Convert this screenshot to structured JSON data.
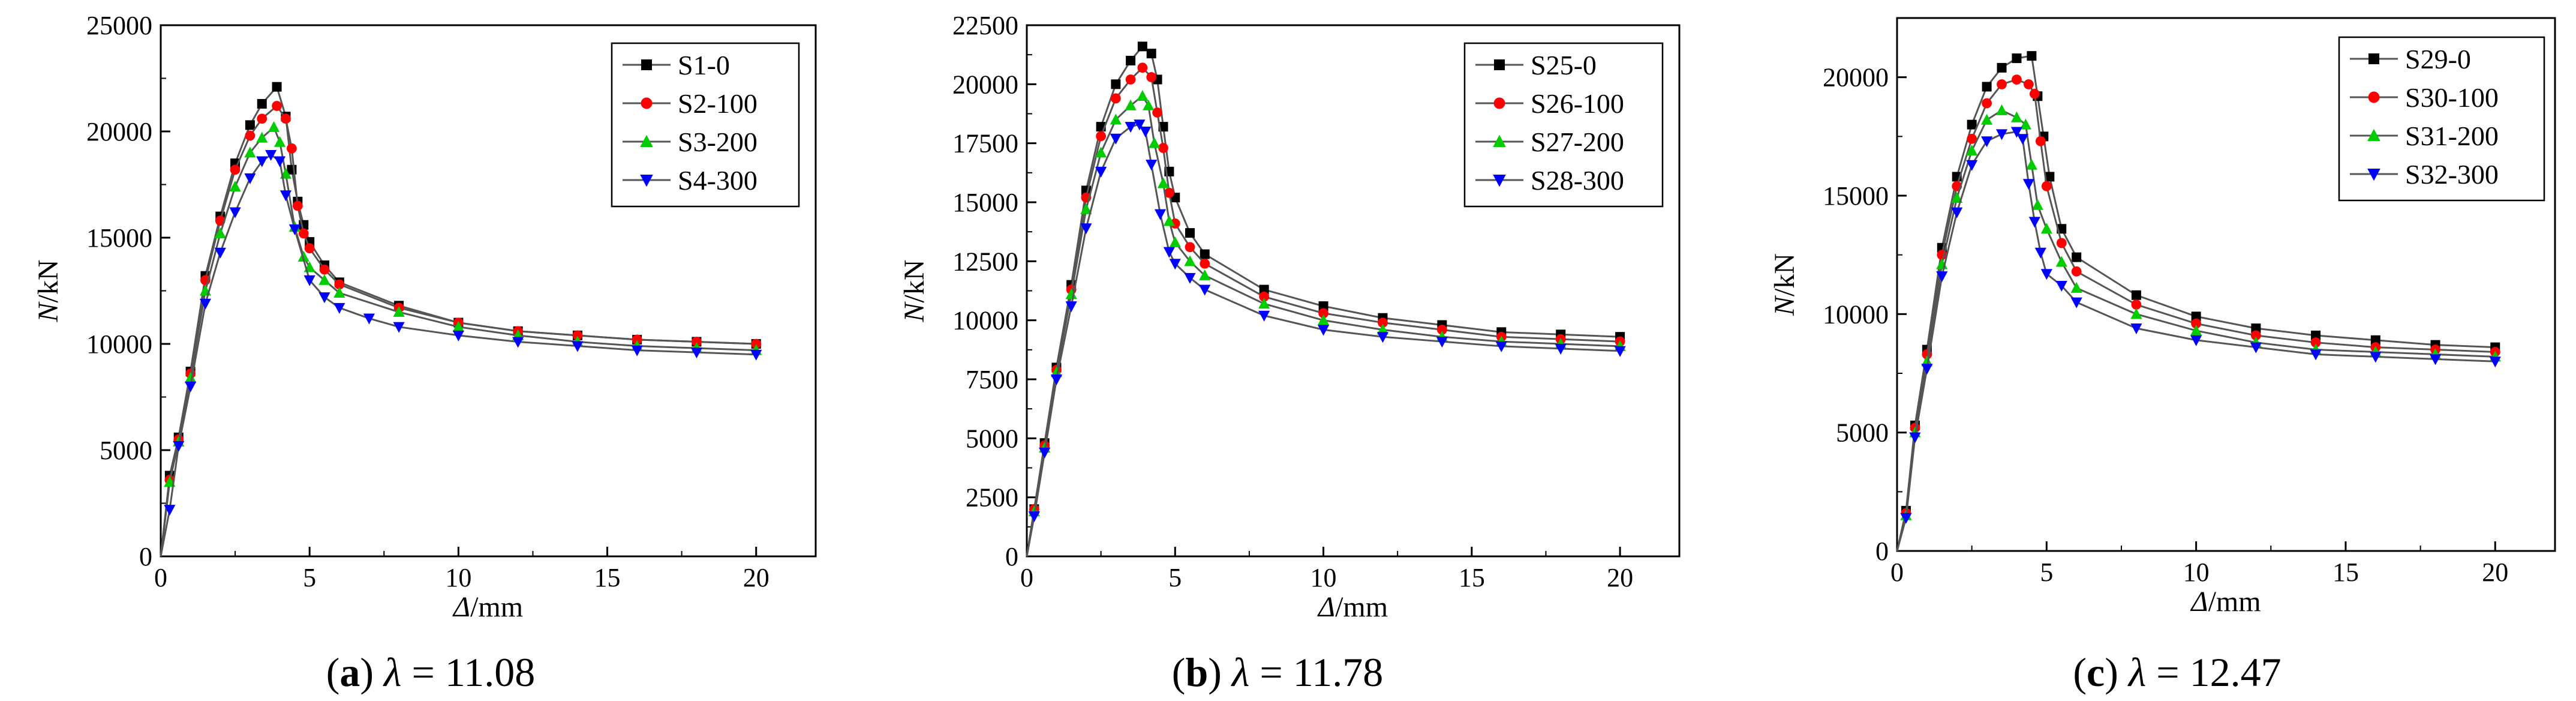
{
  "figure": {
    "captions": [
      {
        "letter": "a",
        "paren_open": "(",
        "paren_close": ")",
        "symbol": "λ",
        "equals": " = ",
        "value": "11.08"
      },
      {
        "letter": "b",
        "paren_open": "(",
        "paren_close": ")",
        "symbol": "λ",
        "equals": " = ",
        "value": "11.78"
      },
      {
        "letter": "c",
        "paren_open": "(",
        "paren_close": ")",
        "symbol": "λ",
        "equals": " = ",
        "value": "12.47"
      }
    ]
  },
  "colors": {
    "series": [
      "#000000",
      "#ff0000",
      "#00cc00",
      "#0000ff"
    ],
    "line": "#555555",
    "axis": "#000000"
  },
  "chart_data": [
    {
      "type": "line",
      "xlabel": {
        "symbol": "Δ",
        "unit": "/mm"
      },
      "ylabel": {
        "symbol": "N",
        "unit": "/kN"
      },
      "xlim": [
        0,
        22
      ],
      "ylim": [
        0,
        25000
      ],
      "xticks": [
        "0",
        "5",
        "10",
        "15",
        "20"
      ],
      "yticks": [
        "0",
        "5000",
        "10000",
        "15000",
        "20000",
        "25000"
      ],
      "legend_position": "top-right",
      "series": [
        {
          "name": "S1-0",
          "marker": "square",
          "x": [
            0,
            0.3,
            0.6,
            1.0,
            1.5,
            2.0,
            2.5,
            3.0,
            3.4,
            3.9,
            4.2,
            4.4,
            4.6,
            4.8,
            5.0,
            5.5,
            6.0,
            8.0,
            10.0,
            12.0,
            14.0,
            16.0,
            18.0,
            20.0
          ],
          "y": [
            0,
            3800,
            5600,
            8700,
            13200,
            16000,
            18500,
            20300,
            21300,
            22100,
            20700,
            18200,
            16700,
            15600,
            14800,
            13700,
            12900,
            11800,
            11000,
            10600,
            10400,
            10200,
            10100,
            10000
          ]
        },
        {
          "name": "S2-100",
          "marker": "circle",
          "x": [
            0,
            0.3,
            0.6,
            1.0,
            1.5,
            2.0,
            2.5,
            3.0,
            3.4,
            3.9,
            4.2,
            4.4,
            4.6,
            4.8,
            5.0,
            5.5,
            6.0,
            8.0,
            10.0,
            12.0,
            14.0,
            16.0,
            18.0,
            20.0
          ],
          "y": [
            0,
            3600,
            5500,
            8600,
            13000,
            15800,
            18200,
            19800,
            20600,
            21200,
            20600,
            19200,
            16500,
            15200,
            14500,
            13500,
            12800,
            11700,
            11000,
            10600,
            10400,
            10200,
            10100,
            10000
          ]
        },
        {
          "name": "S3-200",
          "marker": "triangle-up",
          "x": [
            0,
            0.3,
            0.6,
            1.0,
            1.5,
            2.0,
            2.5,
            3.0,
            3.4,
            3.8,
            4.0,
            4.2,
            4.5,
            4.8,
            5.0,
            5.5,
            6.0,
            8.0,
            10.0,
            12.0,
            14.0,
            16.0,
            18.0,
            20.0
          ],
          "y": [
            0,
            3500,
            5400,
            8400,
            12500,
            15200,
            17400,
            19000,
            19700,
            20200,
            19500,
            18000,
            15500,
            14100,
            13600,
            13000,
            12400,
            11500,
            10800,
            10400,
            10100,
            9900,
            9800,
            9700
          ]
        },
        {
          "name": "S4-300",
          "marker": "triangle-down",
          "x": [
            0,
            0.3,
            0.6,
            1.0,
            1.5,
            2.0,
            2.5,
            3.0,
            3.4,
            3.7,
            4.0,
            4.2,
            4.5,
            5.0,
            5.5,
            6.0,
            7.0,
            8.0,
            10.0,
            12.0,
            14.0,
            16.0,
            18.0,
            20.0
          ],
          "y": [
            0,
            2200,
            5200,
            8000,
            11900,
            14300,
            16200,
            17800,
            18600,
            18900,
            18600,
            17000,
            15400,
            13000,
            12200,
            11700,
            11200,
            10800,
            10400,
            10100,
            9900,
            9700,
            9600,
            9500
          ]
        }
      ]
    },
    {
      "type": "line",
      "xlabel": {
        "symbol": "Δ",
        "unit": "/mm"
      },
      "ylabel": {
        "symbol": "N",
        "unit": "/kN"
      },
      "xlim": [
        0,
        22
      ],
      "ylim": [
        0,
        22500
      ],
      "xticks": [
        "0",
        "5",
        "10",
        "15",
        "20"
      ],
      "yticks": [
        "0",
        "2500",
        "5000",
        "7500",
        "10000",
        "12500",
        "15000",
        "17500",
        "20000",
        "22500"
      ],
      "legend_position": "top-right",
      "series": [
        {
          "name": "S25-0",
          "marker": "square",
          "x": [
            0,
            0.25,
            0.6,
            1.0,
            1.5,
            2.0,
            2.5,
            3.0,
            3.5,
            3.9,
            4.2,
            4.4,
            4.6,
            4.8,
            5.0,
            5.5,
            6.0,
            8.0,
            10.0,
            12.0,
            14.0,
            16.0,
            18.0,
            20.0
          ],
          "y": [
            0,
            2000,
            4800,
            8000,
            11500,
            15500,
            18200,
            20000,
            21000,
            21600,
            21300,
            20200,
            18200,
            16300,
            15200,
            13700,
            12800,
            11300,
            10600,
            10100,
            9800,
            9500,
            9400,
            9300
          ]
        },
        {
          "name": "S26-100",
          "marker": "circle",
          "x": [
            0,
            0.25,
            0.6,
            1.0,
            1.5,
            2.0,
            2.5,
            3.0,
            3.5,
            3.9,
            4.2,
            4.4,
            4.6,
            4.8,
            5.0,
            5.5,
            6.0,
            8.0,
            10.0,
            12.0,
            14.0,
            16.0,
            18.0,
            20.0
          ],
          "y": [
            0,
            2000,
            4700,
            7900,
            11300,
            15200,
            17800,
            19400,
            20200,
            20700,
            20300,
            18800,
            17300,
            15400,
            14100,
            13100,
            12400,
            11000,
            10300,
            9900,
            9600,
            9300,
            9200,
            9100
          ]
        },
        {
          "name": "S27-200",
          "marker": "triangle-up",
          "x": [
            0,
            0.25,
            0.6,
            1.0,
            1.5,
            2.0,
            2.5,
            3.0,
            3.5,
            3.9,
            4.1,
            4.3,
            4.6,
            4.8,
            5.0,
            5.5,
            6.0,
            8.0,
            10.0,
            12.0,
            14.0,
            16.0,
            18.0,
            20.0
          ],
          "y": [
            0,
            1900,
            4600,
            7800,
            11100,
            14700,
            17100,
            18500,
            19100,
            19500,
            19100,
            17500,
            15800,
            14200,
            13300,
            12500,
            11900,
            10700,
            10000,
            9600,
            9300,
            9100,
            9000,
            8900
          ]
        },
        {
          "name": "S28-300",
          "marker": "triangle-down",
          "x": [
            0,
            0.25,
            0.6,
            1.0,
            1.5,
            2.0,
            2.5,
            3.0,
            3.5,
            3.8,
            4.0,
            4.2,
            4.5,
            4.8,
            5.0,
            5.5,
            6.0,
            8.0,
            10.0,
            12.0,
            14.0,
            16.0,
            18.0,
            20.0
          ],
          "y": [
            0,
            1700,
            4400,
            7500,
            10600,
            13900,
            16300,
            17700,
            18200,
            18300,
            18000,
            16600,
            14500,
            12900,
            12400,
            11800,
            11300,
            10200,
            9600,
            9300,
            9100,
            8900,
            8800,
            8700
          ]
        }
      ]
    },
    {
      "type": "line",
      "xlabel": {
        "symbol": "Δ",
        "unit": "/mm"
      },
      "ylabel": {
        "symbol": "N",
        "unit": "/kN"
      },
      "xlim": [
        0,
        22
      ],
      "ylim": [
        0,
        22500
      ],
      "xticks": [
        "0",
        "5",
        "10",
        "15",
        "20"
      ],
      "yticks": [
        "0",
        "5000",
        "10000",
        "15000",
        "20000"
      ],
      "legend_position": "top-right",
      "series": [
        {
          "name": "S29-0",
          "marker": "square",
          "x": [
            0,
            0.3,
            0.6,
            1.0,
            1.5,
            2.0,
            2.5,
            3.0,
            3.5,
            4.0,
            4.5,
            4.7,
            4.9,
            5.1,
            5.5,
            6.0,
            8.0,
            10.0,
            12.0,
            14.0,
            16.0,
            18.0,
            20.0
          ],
          "y": [
            0,
            1700,
            5300,
            8500,
            12800,
            15800,
            18000,
            19600,
            20400,
            20800,
            20900,
            19200,
            17500,
            15800,
            13600,
            12400,
            10800,
            9900,
            9400,
            9100,
            8900,
            8700,
            8600
          ]
        },
        {
          "name": "S30-100",
          "marker": "circle",
          "x": [
            0,
            0.3,
            0.6,
            1.0,
            1.5,
            2.0,
            2.5,
            3.0,
            3.5,
            4.0,
            4.4,
            4.6,
            4.8,
            5.0,
            5.5,
            6.0,
            8.0,
            10.0,
            12.0,
            14.0,
            16.0,
            18.0,
            20.0
          ],
          "y": [
            0,
            1600,
            5200,
            8300,
            12500,
            15400,
            17400,
            18900,
            19700,
            19900,
            19700,
            19300,
            17300,
            15400,
            13000,
            11800,
            10400,
            9600,
            9100,
            8800,
            8600,
            8500,
            8400
          ]
        },
        {
          "name": "S31-200",
          "marker": "triangle-up",
          "x": [
            0,
            0.3,
            0.6,
            1.0,
            1.5,
            2.0,
            2.5,
            3.0,
            3.5,
            4.0,
            4.3,
            4.5,
            4.7,
            5.0,
            5.5,
            6.0,
            8.0,
            10.0,
            12.0,
            14.0,
            16.0,
            18.0,
            20.0
          ],
          "y": [
            0,
            1500,
            5000,
            8000,
            12100,
            14900,
            16900,
            18200,
            18600,
            18300,
            18000,
            16300,
            14600,
            13600,
            12200,
            11100,
            10000,
            9300,
            8800,
            8500,
            8400,
            8300,
            8200
          ]
        },
        {
          "name": "S32-300",
          "marker": "triangle-down",
          "x": [
            0,
            0.3,
            0.6,
            1.0,
            1.5,
            2.0,
            2.5,
            3.0,
            3.5,
            4.0,
            4.2,
            4.4,
            4.6,
            4.8,
            5.0,
            5.5,
            6.0,
            8.0,
            10.0,
            12.0,
            14.0,
            16.0,
            18.0,
            20.0
          ],
          "y": [
            0,
            1400,
            4800,
            7700,
            11600,
            14300,
            16300,
            17300,
            17600,
            17700,
            17400,
            15500,
            13900,
            12600,
            11700,
            11200,
            10500,
            9400,
            8900,
            8600,
            8300,
            8200,
            8100,
            8000
          ]
        }
      ]
    }
  ]
}
